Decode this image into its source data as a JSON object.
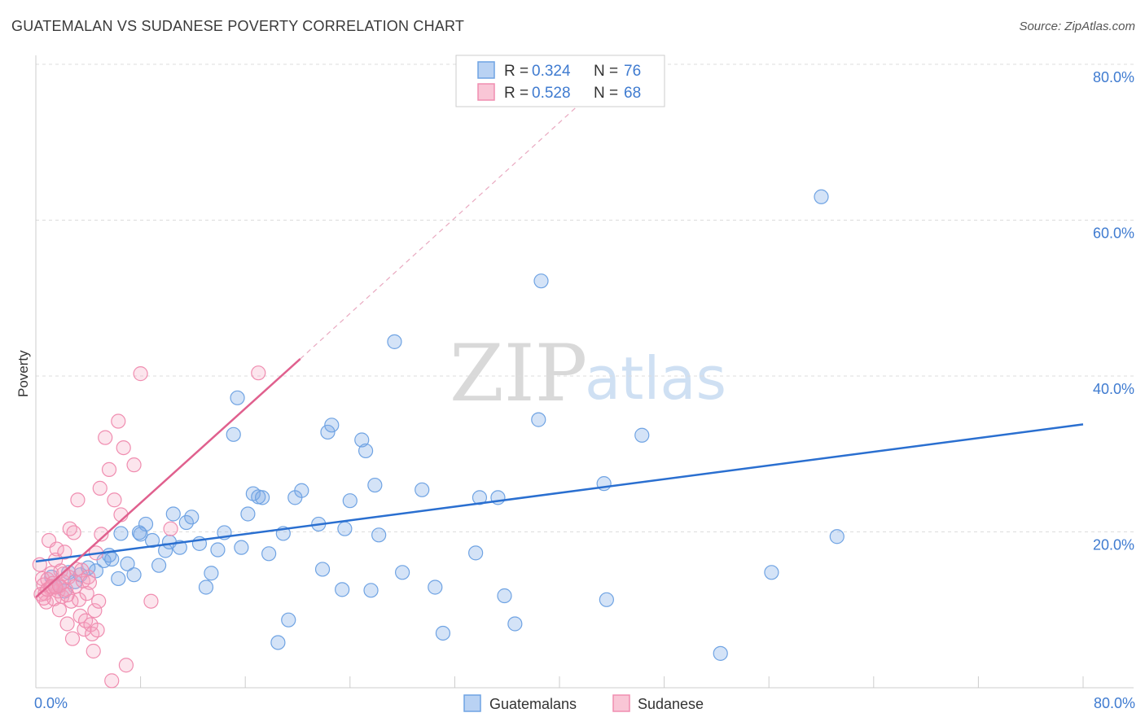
{
  "title": "GUATEMALAN VS SUDANESE POVERTY CORRELATION CHART",
  "source": "Source: ZipAtlas.com",
  "watermark": {
    "zip": "ZIP",
    "atlas": "atlas"
  },
  "colors": {
    "blue": "#6fa3e3",
    "blue_line": "#2a6fd0",
    "pink": "#f08db0",
    "pink_line": "#e0608e",
    "tick_label": "#3f7bd0"
  },
  "legend": {
    "rows": [
      {
        "r_label": "R = ",
        "r_value": "0.324",
        "n_label": "N = ",
        "n_value": "76"
      },
      {
        "r_label": "R = ",
        "r_value": "0.528",
        "n_label": "N = ",
        "n_value": "68"
      }
    ]
  },
  "bottom_legend": [
    "Guatemalans",
    "Sudanese"
  ],
  "chart_data": {
    "type": "scatter",
    "title": "GUATEMALAN VS SUDANESE POVERTY CORRELATION CHART",
    "xlabel": "",
    "ylabel": "Poverty",
    "xlim": [
      0,
      80
    ],
    "ylim": [
      0,
      80
    ],
    "x_tick_labels": [
      "0.0%",
      "80.0%"
    ],
    "y_tick_labels": [
      "20.0%",
      "40.0%",
      "60.0%",
      "80.0%"
    ],
    "y_ticks": [
      20,
      40,
      60,
      80
    ],
    "grid": "horizontal dashed",
    "legend_position": "top-center",
    "series": [
      {
        "name": "Guatemalans",
        "R": 0.324,
        "N": 76,
        "trend": {
          "x": [
            0,
            80
          ],
          "y": [
            16.2,
            33.8
          ],
          "extended": false
        },
        "points": [
          [
            1.2,
            14.2
          ],
          [
            1.8,
            13.1
          ],
          [
            2.5,
            14.8
          ],
          [
            3.0,
            13.6
          ],
          [
            2.2,
            12.4
          ],
          [
            1.5,
            13.0
          ],
          [
            3.4,
            14.5
          ],
          [
            4.0,
            15.4
          ],
          [
            4.6,
            15.0
          ],
          [
            5.2,
            16.3
          ],
          [
            5.6,
            17.0
          ],
          [
            5.8,
            16.5
          ],
          [
            6.3,
            14.0
          ],
          [
            6.5,
            19.8
          ],
          [
            7.0,
            15.9
          ],
          [
            7.5,
            14.5
          ],
          [
            8.0,
            19.7
          ],
          [
            8.4,
            21.0
          ],
          [
            8.9,
            18.9
          ],
          [
            9.4,
            15.7
          ],
          [
            9.9,
            17.6
          ],
          [
            10.2,
            18.7
          ],
          [
            10.5,
            22.3
          ],
          [
            11.0,
            18.0
          ],
          [
            11.5,
            21.2
          ],
          [
            11.9,
            21.9
          ],
          [
            12.5,
            18.5
          ],
          [
            13.0,
            12.9
          ],
          [
            13.4,
            14.7
          ],
          [
            13.9,
            17.7
          ],
          [
            14.4,
            19.9
          ],
          [
            15.1,
            32.5
          ],
          [
            15.4,
            37.2
          ],
          [
            15.7,
            18.0
          ],
          [
            16.2,
            22.3
          ],
          [
            16.6,
            24.9
          ],
          [
            17.0,
            24.5
          ],
          [
            17.3,
            24.4
          ],
          [
            17.8,
            17.2
          ],
          [
            18.5,
            5.8
          ],
          [
            18.9,
            19.8
          ],
          [
            19.3,
            8.7
          ],
          [
            19.8,
            24.4
          ],
          [
            20.3,
            25.3
          ],
          [
            21.6,
            21.0
          ],
          [
            21.9,
            15.2
          ],
          [
            22.3,
            32.8
          ],
          [
            22.6,
            33.7
          ],
          [
            23.4,
            12.6
          ],
          [
            23.6,
            20.4
          ],
          [
            24.0,
            24.0
          ],
          [
            24.9,
            31.8
          ],
          [
            25.2,
            30.4
          ],
          [
            25.6,
            12.5
          ],
          [
            25.9,
            26.0
          ],
          [
            26.2,
            19.6
          ],
          [
            27.4,
            44.4
          ],
          [
            28.0,
            14.8
          ],
          [
            29.5,
            25.4
          ],
          [
            30.5,
            12.9
          ],
          [
            31.1,
            7.0
          ],
          [
            33.6,
            17.3
          ],
          [
            33.9,
            24.4
          ],
          [
            35.3,
            24.4
          ],
          [
            35.8,
            11.8
          ],
          [
            36.6,
            8.2
          ],
          [
            38.4,
            34.4
          ],
          [
            38.6,
            52.2
          ],
          [
            43.4,
            26.2
          ],
          [
            43.6,
            11.3
          ],
          [
            46.3,
            32.4
          ],
          [
            52.3,
            4.4
          ],
          [
            56.2,
            14.8
          ],
          [
            60.0,
            63.0
          ],
          [
            61.2,
            19.4
          ],
          [
            7.9,
            19.9
          ]
        ]
      },
      {
        "name": "Sudanese",
        "R": 0.528,
        "N": 68,
        "trend": {
          "x": [
            0,
            20.2
          ],
          "y": [
            11.6,
            42.2
          ],
          "extended": true,
          "extended_to": [
            42.0,
            75.6
          ]
        },
        "points": [
          [
            0.3,
            15.8
          ],
          [
            0.5,
            14.0
          ],
          [
            0.6,
            13.2
          ],
          [
            0.7,
            12.1
          ],
          [
            0.8,
            11.0
          ],
          [
            0.9,
            13.9
          ],
          [
            1.0,
            18.9
          ],
          [
            1.1,
            12.8
          ],
          [
            1.2,
            14.7
          ],
          [
            1.3,
            13.4
          ],
          [
            1.4,
            11.4
          ],
          [
            1.5,
            16.4
          ],
          [
            1.6,
            17.8
          ],
          [
            1.7,
            12.4
          ],
          [
            1.8,
            10.0
          ],
          [
            1.9,
            15.0
          ],
          [
            2.0,
            11.7
          ],
          [
            2.1,
            13.6
          ],
          [
            2.2,
            17.4
          ],
          [
            2.3,
            12.6
          ],
          [
            2.4,
            8.2
          ],
          [
            2.5,
            14.2
          ],
          [
            2.6,
            20.4
          ],
          [
            2.7,
            11.1
          ],
          [
            2.8,
            6.3
          ],
          [
            2.9,
            19.9
          ],
          [
            3.0,
            13.0
          ],
          [
            3.1,
            15.2
          ],
          [
            3.2,
            24.1
          ],
          [
            3.3,
            11.3
          ],
          [
            3.4,
            9.2
          ],
          [
            3.5,
            15.1
          ],
          [
            3.6,
            13.7
          ],
          [
            3.7,
            7.5
          ],
          [
            3.8,
            8.6
          ],
          [
            3.9,
            12.1
          ],
          [
            4.0,
            14.2
          ],
          [
            4.1,
            13.5
          ],
          [
            4.2,
            8.1
          ],
          [
            4.3,
            6.9
          ],
          [
            4.4,
            4.7
          ],
          [
            4.5,
            9.9
          ],
          [
            4.6,
            17.3
          ],
          [
            4.7,
            7.4
          ],
          [
            4.8,
            11.1
          ],
          [
            4.9,
            25.6
          ],
          [
            5.0,
            19.7
          ],
          [
            5.3,
            32.1
          ],
          [
            5.6,
            28.0
          ],
          [
            5.8,
            0.9
          ],
          [
            6.0,
            24.1
          ],
          [
            6.3,
            34.2
          ],
          [
            6.5,
            22.2
          ],
          [
            6.7,
            30.8
          ],
          [
            7.5,
            28.6
          ],
          [
            6.9,
            2.9
          ],
          [
            8.0,
            40.3
          ],
          [
            8.8,
            11.1
          ],
          [
            10.3,
            20.4
          ],
          [
            17.0,
            40.4
          ],
          [
            0.4,
            12.0
          ],
          [
            0.6,
            11.5
          ],
          [
            0.9,
            12.6
          ],
          [
            1.2,
            13.0
          ],
          [
            1.5,
            12.9
          ],
          [
            1.8,
            13.1
          ],
          [
            2.1,
            14.6
          ],
          [
            2.4,
            11.9
          ]
        ]
      }
    ]
  }
}
